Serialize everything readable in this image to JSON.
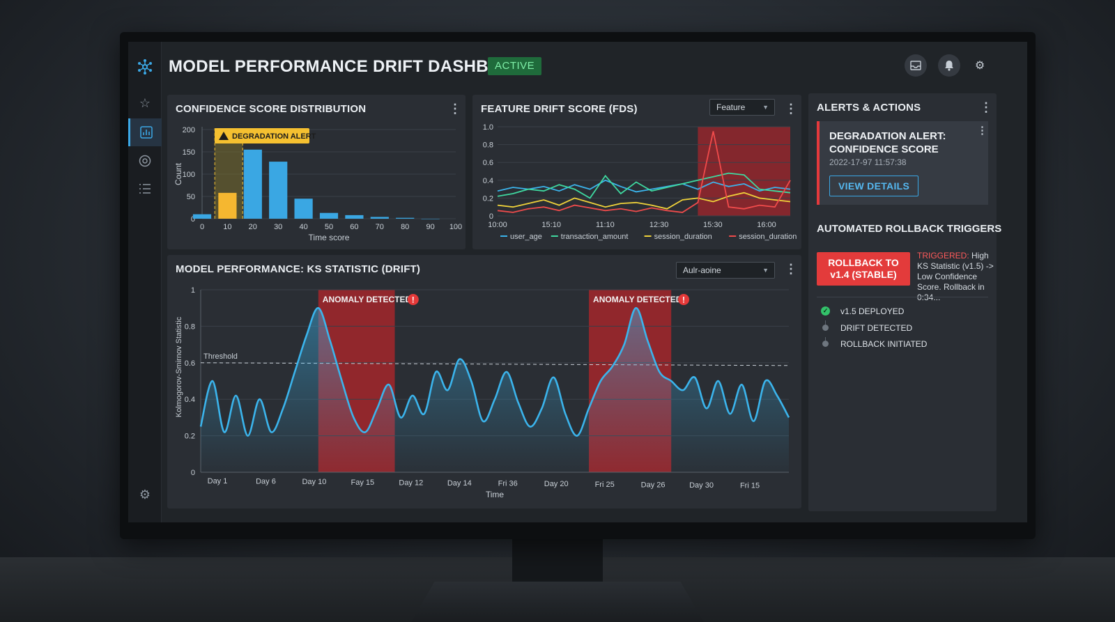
{
  "header": {
    "title": "MODEL PERFORMANCE DRIFT DASHBOARD",
    "status_badge": "ACTIVE"
  },
  "icons": {
    "logo": "network-logo-icon",
    "sidebar": [
      "star-icon",
      "bar-chart-icon",
      "target-icon",
      "list-icon"
    ],
    "sidebar_bottom": "gear-icon",
    "topbar": [
      "inbox-icon",
      "bell-icon",
      "settings-icon"
    ]
  },
  "colors": {
    "accent": "#3ba8e6",
    "alert_red": "#e33b3b",
    "warning_yellow": "#f5c030",
    "success_green": "#33c26a"
  },
  "confidence_panel": {
    "title": "CONFIDENCE SCORE DISTRIBUTION",
    "alert_label": "DEGRADATION ALERT"
  },
  "drift_panel": {
    "title": "FEATURE DRIFT SCORE (FDS)",
    "dropdown_value": "Feature"
  },
  "ks_panel": {
    "title": "MODEL PERFORMANCE: KS STATISTIC (DRIFT)",
    "dropdown_value": "Aulr-aoine",
    "threshold_label": "Threshold",
    "anomaly_label_1": "ANOMALY DETECTED",
    "anomaly_label_2": "ANOMALY DETECTED"
  },
  "alerts_panel": {
    "title": "ALERTS & ACTIONS",
    "alert_card": {
      "title": "DEGRADATION ALERT: CONFIDENCE SCORE",
      "timestamp": "2022-17-97 11:57:38",
      "button": "VIEW DETAILS"
    },
    "rollback_section": {
      "title": "AUTOMATED ROLLBACK TRIGGERS",
      "button_line1": "ROLLBACK TO",
      "button_line2": "v1.4 (STABLE)",
      "triggered_label": "TRIGGERED:",
      "triggered_text": "High KS Statistic (v1.5) -> Low Confidence Score. Rollback in 0:34..."
    },
    "timeline": [
      "v1.5 DEPLOYED",
      "DRIFT DETECTED",
      "ROLLBACK INITIATED"
    ]
  },
  "chart_data": [
    {
      "type": "bar",
      "title": "CONFIDENCE SCORE DISTRIBUTION",
      "xlabel": "Time score",
      "ylabel": "Count",
      "xlim": [
        0,
        100
      ],
      "ylim": [
        0,
        200
      ],
      "x_ticks": [
        "0",
        "10",
        "20",
        "30",
        "40",
        "50",
        "60",
        "70",
        "80",
        "90",
        "100"
      ],
      "y_ticks": [
        "0",
        "50",
        "100",
        "150",
        "200"
      ],
      "bins": [
        {
          "x": 0,
          "value": 10,
          "highlight": false
        },
        {
          "x": 10,
          "value": 58,
          "highlight": true
        },
        {
          "x": 20,
          "value": 155,
          "highlight": false
        },
        {
          "x": 30,
          "value": 128,
          "highlight": false
        },
        {
          "x": 40,
          "value": 45,
          "highlight": false
        },
        {
          "x": 50,
          "value": 13,
          "highlight": false
        },
        {
          "x": 60,
          "value": 8,
          "highlight": false
        },
        {
          "x": 70,
          "value": 4,
          "highlight": false
        },
        {
          "x": 80,
          "value": 2,
          "highlight": false
        },
        {
          "x": 90,
          "value": 0,
          "highlight": false
        }
      ],
      "alert_range": [
        5,
        16
      ]
    },
    {
      "type": "line",
      "title": "FEATURE DRIFT SCORE (FDS)",
      "x_ticks": [
        "10:00",
        "15:10",
        "11:10",
        "12:30",
        "15:30",
        "16:00"
      ],
      "y_ticks": [
        "0",
        "0.2",
        "0.4",
        "0.6",
        "0.8",
        "1.0"
      ],
      "ylim": [
        0,
        1
      ],
      "highlight_range": [
        13,
        19
      ],
      "series": [
        {
          "name": "user_age",
          "color": "#3bb4ec",
          "values": [
            0.28,
            0.32,
            0.3,
            0.33,
            0.28,
            0.35,
            0.3,
            0.4,
            0.33,
            0.27,
            0.3,
            0.33,
            0.36,
            0.3,
            0.38,
            0.33,
            0.36,
            0.28,
            0.32,
            0.3
          ]
        },
        {
          "name": "transaction_amount",
          "color": "#3fd9a0",
          "values": [
            0.22,
            0.25,
            0.3,
            0.28,
            0.35,
            0.3,
            0.2,
            0.45,
            0.25,
            0.38,
            0.28,
            0.32,
            0.36,
            0.4,
            0.44,
            0.48,
            0.46,
            0.3,
            0.28,
            0.26
          ]
        },
        {
          "name": "session_duration",
          "color": "#f0d33a",
          "values": [
            0.12,
            0.1,
            0.14,
            0.18,
            0.12,
            0.2,
            0.15,
            0.1,
            0.14,
            0.15,
            0.12,
            0.08,
            0.18,
            0.2,
            0.16,
            0.22,
            0.26,
            0.2,
            0.18,
            0.16
          ]
        },
        {
          "name": "session_duration",
          "color": "#f04b4b",
          "values": [
            0.06,
            0.04,
            0.08,
            0.1,
            0.06,
            0.12,
            0.09,
            0.06,
            0.08,
            0.05,
            0.09,
            0.06,
            0.04,
            0.15,
            0.95,
            0.1,
            0.08,
            0.12,
            0.1,
            0.4
          ]
        }
      ]
    },
    {
      "type": "area",
      "title": "MODEL PERFORMANCE: KS STATISTIC (DRIFT)",
      "xlabel": "Time",
      "ylabel": "Kolmogorov-Smirnov Statistic",
      "ylim": [
        0,
        1
      ],
      "y_ticks": [
        "0",
        "0.2",
        "0.4",
        "0.6",
        "0.8",
        "1"
      ],
      "threshold": 0.6,
      "x_ticks": [
        "Day 1",
        "Day 6",
        "Day 10",
        "Fay 15",
        "Day 12",
        "Day 14",
        "Fri 36",
        "Day 20",
        "Fri 25",
        "Day 26",
        "Day 30",
        "Fri 15"
      ],
      "anomaly_ranges": [
        [
          20,
          33
        ],
        [
          66,
          80
        ]
      ],
      "x": [
        0,
        2,
        4,
        6,
        8,
        10,
        12,
        14,
        16,
        18,
        20,
        22,
        24,
        26,
        28,
        30,
        32,
        34,
        36,
        38,
        40,
        42,
        44,
        46,
        48,
        50,
        52,
        54,
        56,
        58,
        60,
        62,
        64,
        66,
        68,
        70,
        72,
        74,
        76,
        78,
        80,
        82,
        84,
        86,
        88,
        90,
        92,
        94,
        96,
        98,
        100
      ],
      "values": [
        0.25,
        0.5,
        0.22,
        0.42,
        0.2,
        0.4,
        0.22,
        0.35,
        0.55,
        0.75,
        0.9,
        0.72,
        0.5,
        0.3,
        0.22,
        0.35,
        0.48,
        0.3,
        0.42,
        0.32,
        0.55,
        0.45,
        0.62,
        0.5,
        0.28,
        0.4,
        0.55,
        0.38,
        0.25,
        0.35,
        0.52,
        0.32,
        0.2,
        0.35,
        0.5,
        0.58,
        0.7,
        0.9,
        0.72,
        0.55,
        0.5,
        0.45,
        0.52,
        0.35,
        0.5,
        0.32,
        0.48,
        0.28,
        0.5,
        0.42,
        0.3
      ]
    }
  ]
}
